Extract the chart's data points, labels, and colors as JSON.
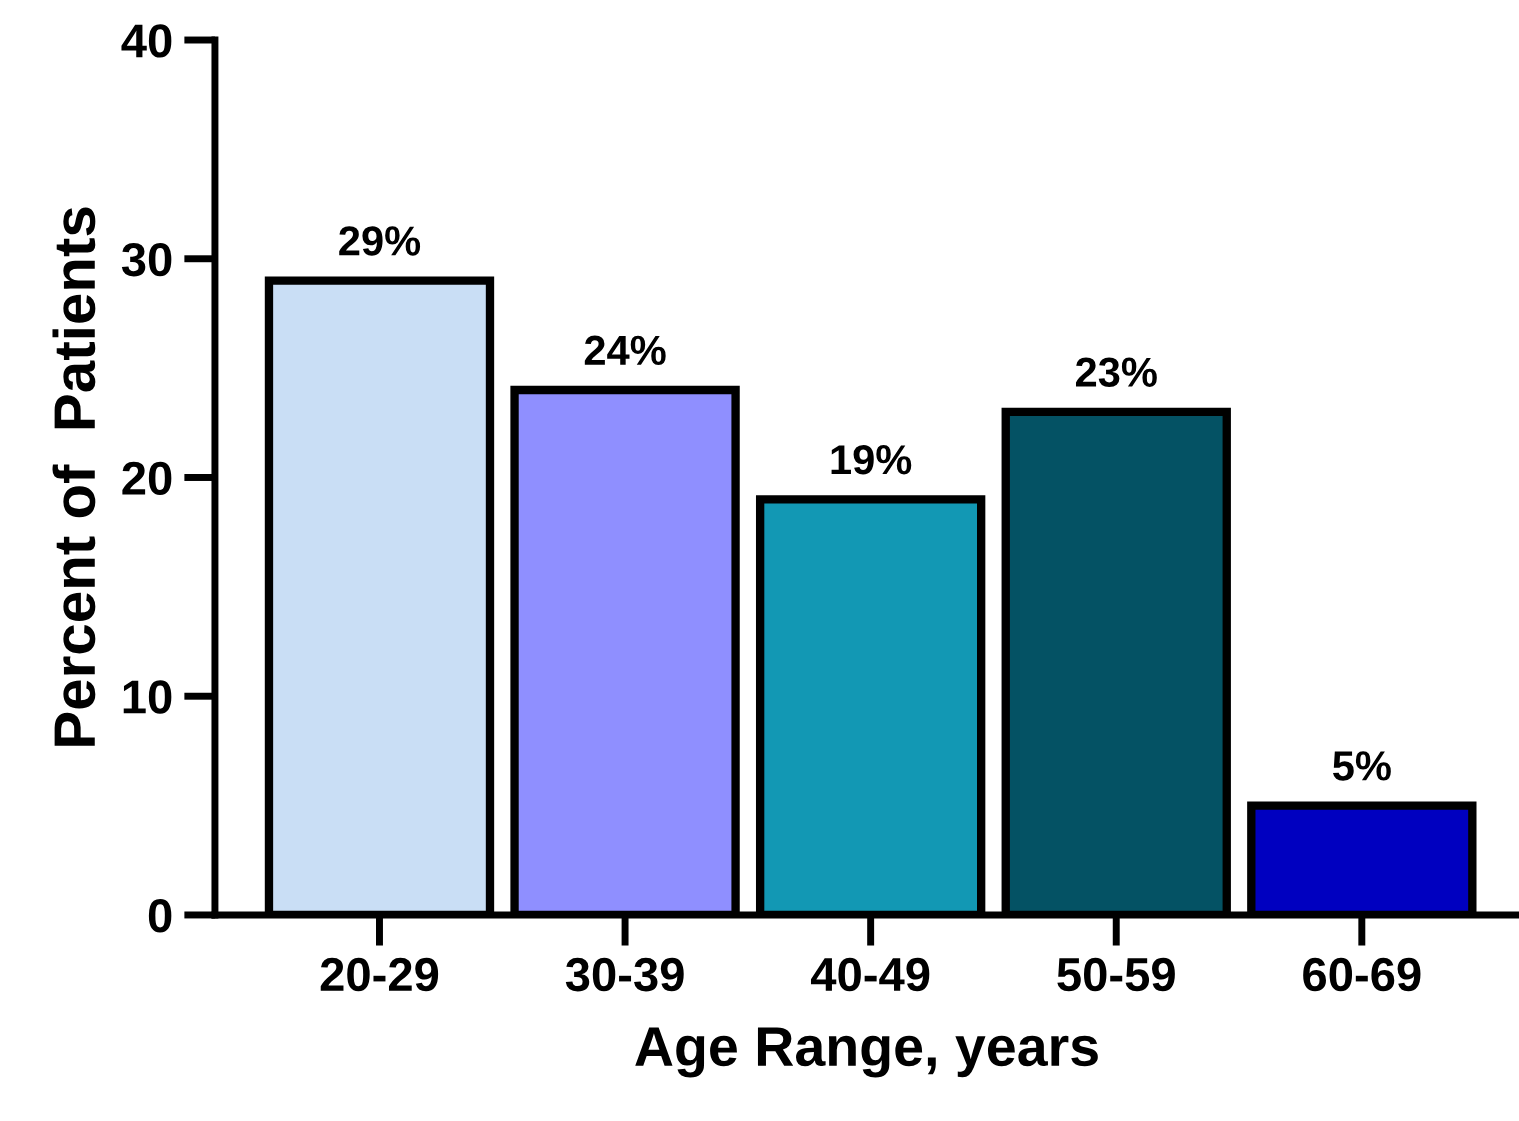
{
  "chart_data": {
    "type": "bar",
    "xlabel": "Age Range, years",
    "ylabel": "Percent of  Patients",
    "categories": [
      "20-29",
      "30-39",
      "40-49",
      "50-59",
      "60-69"
    ],
    "values": [
      29,
      24,
      19,
      23,
      5
    ],
    "colors": [
      "#c9def5",
      "#8f8fff",
      "#1298b4",
      "#045264",
      "#0000c0"
    ],
    "value_labels": [
      "29%",
      "24%",
      "19%",
      "23%",
      "5%"
    ],
    "ylim": [
      0,
      40
    ],
    "yticks": [
      0,
      10,
      20,
      30,
      40
    ],
    "grid": false,
    "legend": false
  }
}
